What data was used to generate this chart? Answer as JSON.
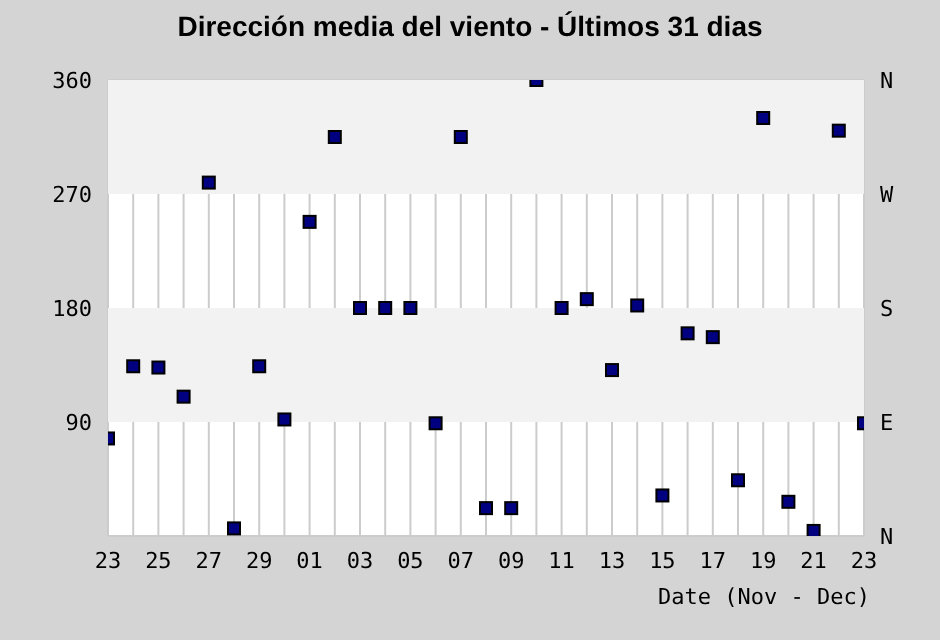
{
  "chart_data": {
    "type": "scatter",
    "title": "Dirección media del viento - Últimos 31 dias",
    "xlabel": "Date (Nov - Dec)",
    "categories": [
      "23",
      null,
      "25",
      null,
      "27",
      null,
      "29",
      null,
      "01",
      null,
      "03",
      null,
      "05",
      null,
      "07",
      null,
      "09",
      null,
      "11",
      null,
      "13",
      null,
      "15",
      null,
      "17",
      null,
      "19",
      null,
      "21",
      null,
      "23"
    ],
    "series": [
      {
        "color": "#000080",
        "values": [
          77,
          134,
          133,
          110,
          279,
          6,
          134,
          92,
          248,
          315,
          180,
          180,
          180,
          89,
          315,
          22,
          22,
          360,
          180,
          187,
          131,
          182,
          32,
          160,
          157,
          44,
          330,
          27,
          4,
          320,
          89
        ]
      }
    ],
    "ylim": [
      0,
      360
    ],
    "yticks": [
      {
        "value": 0,
        "label": null
      },
      90,
      180,
      270,
      360
    ],
    "annotations": [
      "N",
      "W",
      "S",
      "E",
      "N"
    ],
    "bands": [
      {
        "axis": "y",
        "from": 90,
        "to": 180,
        "color": "#f2f2f2"
      },
      {
        "axis": "y",
        "from": 270,
        "to": 360,
        "color": "#f2f2f2"
      }
    ],
    "grid": true,
    "legend": false,
    "marker": "square"
  }
}
